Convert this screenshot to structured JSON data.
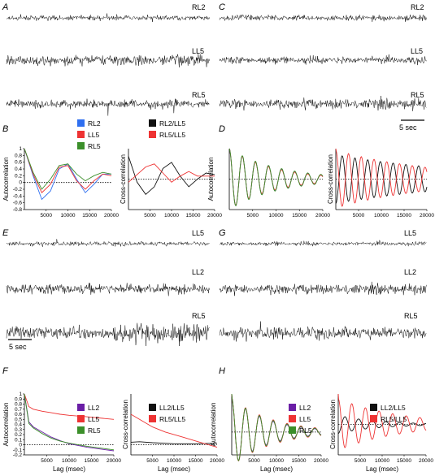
{
  "figure": {
    "panels": [
      {
        "id": "A",
        "label": "A",
        "type": "traces",
        "traces": [
          "RL2",
          "LL5",
          "RL5"
        ]
      },
      {
        "id": "C",
        "label": "C",
        "type": "traces",
        "traces": [
          "RL2",
          "LL5",
          "RL5"
        ],
        "scalebar": "5 sec"
      },
      {
        "id": "E",
        "label": "E",
        "type": "traces",
        "traces": [
          "LL5",
          "LL2",
          "RL5"
        ],
        "scalebar": "5 sec"
      },
      {
        "id": "G",
        "label": "G",
        "type": "traces",
        "traces": [
          "LL5",
          "LL2",
          "RL5"
        ]
      }
    ]
  },
  "colors": {
    "blue": "#2f6ff0",
    "red": "#ee3333",
    "green": "#3b8f2a",
    "purple": "#6a1ea6",
    "black": "#111111"
  },
  "chart_data": [
    {
      "panel": "B",
      "type": "line",
      "ylabel": "Autocorrelation",
      "xlabel": "",
      "xlim": [
        0,
        20000
      ],
      "ylim": [
        -0.8,
        1.0
      ],
      "xticks": [
        5000,
        10000,
        15000,
        20000
      ],
      "yticks": [
        -0.8,
        -0.6,
        -0.4,
        -0.2,
        0,
        0.2,
        0.4,
        0.6,
        0.8,
        1.0
      ],
      "legend": [
        "RL2",
        "LL5",
        "RL5"
      ],
      "series": [
        {
          "name": "RL2",
          "color": "blue",
          "x": [
            0,
            2000,
            4000,
            6000,
            8000,
            10000,
            12000,
            14000,
            16000,
            18000,
            20000
          ],
          "y": [
            1,
            0.2,
            -0.5,
            -0.25,
            0.4,
            0.55,
            0.1,
            -0.3,
            -0.05,
            0.25,
            0.25
          ]
        },
        {
          "name": "LL5",
          "color": "red",
          "x": [
            0,
            2000,
            4000,
            6000,
            8000,
            10000,
            12000,
            14000,
            16000,
            18000,
            20000
          ],
          "y": [
            1,
            0.25,
            -0.3,
            -0.05,
            0.45,
            0.5,
            0.05,
            -0.2,
            0.05,
            0.25,
            0.2
          ]
        },
        {
          "name": "RL5",
          "color": "green",
          "x": [
            0,
            2000,
            4000,
            6000,
            8000,
            10000,
            12000,
            14000,
            16000,
            18000,
            20000
          ],
          "y": [
            1,
            0.3,
            -0.2,
            0.1,
            0.5,
            0.55,
            0.25,
            0.05,
            0.2,
            0.3,
            0.25
          ]
        }
      ]
    },
    {
      "panel": "B2",
      "type": "line",
      "ylabel": "Cross-correlation",
      "xlabel": "",
      "xlim": [
        0,
        20000
      ],
      "ylim": [
        -1,
        1
      ],
      "xticks": [
        5000,
        10000,
        15000,
        20000
      ],
      "legend": [
        "RL2/LL5",
        "RL5/LL5"
      ],
      "series": [
        {
          "name": "RL2/LL5",
          "color": "black",
          "x": [
            0,
            2000,
            4000,
            6000,
            8000,
            10000,
            12000,
            14000,
            16000,
            18000,
            20000
          ],
          "y": [
            0.75,
            -0.1,
            -0.5,
            -0.25,
            0.35,
            0.55,
            0.1,
            -0.25,
            0.0,
            0.2,
            0.15
          ]
        },
        {
          "name": "RL5/LL5",
          "color": "red",
          "x": [
            0,
            2000,
            4000,
            6000,
            8000,
            10000,
            12000,
            14000,
            16000,
            18000,
            20000
          ],
          "y": [
            -0.1,
            0.15,
            0.4,
            0.5,
            0.2,
            -0.1,
            0.1,
            0.25,
            0.1,
            0.1,
            0.1
          ]
        }
      ]
    },
    {
      "panel": "D",
      "type": "line",
      "ylabel": "Autocorrelation",
      "xlabel": "",
      "xlim": [
        0,
        20000
      ],
      "ylim": [
        -1,
        1
      ],
      "xticks": [
        5000,
        10000,
        15000,
        20000
      ],
      "series": [
        {
          "name": "RL2",
          "color": "blue",
          "damped_cosine": {
            "amp": 1.0,
            "period": 2800,
            "decay": 10000
          }
        },
        {
          "name": "LL5",
          "color": "red",
          "damped_cosine": {
            "amp": 1.0,
            "period": 2800,
            "decay": 9500
          }
        },
        {
          "name": "RL5",
          "color": "green",
          "damped_cosine": {
            "amp": 1.0,
            "period": 2800,
            "decay": 10500
          }
        }
      ]
    },
    {
      "panel": "D2",
      "type": "line",
      "ylabel": "Cross-correlation",
      "xlabel": "",
      "xlim": [
        0,
        20000
      ],
      "ylim": [
        -1,
        1
      ],
      "xticks": [
        5000,
        10000,
        15000,
        20000
      ],
      "series": [
        {
          "name": "RL2/LL5",
          "color": "black",
          "damped_cosine": {
            "amp": 0.8,
            "period": 2800,
            "decay": 30000,
            "phase": 3.14
          }
        },
        {
          "name": "RL5/LL5",
          "color": "red",
          "damped_cosine": {
            "amp": 0.95,
            "period": 2800,
            "decay": 22000,
            "phase": 0
          }
        }
      ]
    },
    {
      "panel": "F",
      "type": "line",
      "ylabel": "Autocorrelation",
      "xlabel": "Lag (msec)",
      "xlim": [
        0,
        20000
      ],
      "ylim": [
        -0.2,
        1.0
      ],
      "xticks": [
        5000,
        10000,
        15000,
        20000
      ],
      "yticks": [
        -0.2,
        -0.1,
        0,
        0.1,
        0.2,
        0.3,
        0.4,
        0.5,
        0.6,
        0.7,
        0.8,
        0.9,
        1.0
      ],
      "legend": [
        "LL2",
        "LL5",
        "RL5"
      ],
      "series": [
        {
          "name": "LL2",
          "color": "purple",
          "x": [
            0,
            1000,
            2000,
            4000,
            6000,
            8000,
            10000,
            14000,
            20000
          ],
          "y": [
            1,
            0.45,
            0.35,
            0.25,
            0.15,
            0.08,
            0.02,
            -0.05,
            -0.12
          ]
        },
        {
          "name": "LL5",
          "color": "red",
          "x": [
            0,
            1000,
            2000,
            4000,
            6000,
            8000,
            10000,
            14000,
            20000
          ],
          "y": [
            1,
            0.75,
            0.7,
            0.66,
            0.63,
            0.6,
            0.58,
            0.55,
            0.5
          ]
        },
        {
          "name": "RL5",
          "color": "green",
          "x": [
            0,
            1000,
            2000,
            4000,
            6000,
            8000,
            10000,
            14000,
            20000
          ],
          "y": [
            1,
            0.42,
            0.33,
            0.22,
            0.13,
            0.07,
            0.03,
            -0.03,
            -0.1
          ]
        }
      ]
    },
    {
      "panel": "F2",
      "type": "line",
      "ylabel": "Cross-correlation",
      "xlabel": "Lag (msec)",
      "xlim": [
        0,
        20000
      ],
      "ylim": [
        -0.2,
        1.0
      ],
      "xticks": [
        5000,
        10000,
        15000,
        20000
      ],
      "legend": [
        "LL2/LL5",
        "RL5/LL5"
      ],
      "series": [
        {
          "name": "LL2/LL5",
          "color": "black",
          "x": [
            0,
            2000,
            5000,
            10000,
            15000,
            20000
          ],
          "y": [
            0.05,
            0.06,
            0.04,
            0.02,
            0.02,
            0.03
          ]
        },
        {
          "name": "RL5/LL5",
          "color": "red",
          "x": [
            0,
            2000,
            5000,
            8000,
            12000,
            16000,
            20000
          ],
          "y": [
            0.6,
            0.5,
            0.35,
            0.25,
            0.15,
            0.05,
            -0.05
          ]
        }
      ]
    },
    {
      "panel": "H",
      "type": "line",
      "ylabel": "Autocorrelation",
      "xlabel": "Lag (msec)",
      "xlim": [
        0,
        20000
      ],
      "ylim": [
        -0.6,
        1.0
      ],
      "xticks": [
        5000,
        10000,
        15000,
        20000
      ],
      "legend": [
        "LL2",
        "LL5",
        "RL5"
      ],
      "series": [
        {
          "name": "LL2",
          "color": "purple",
          "damped_cosine": {
            "amp": 0.9,
            "period": 3100,
            "decay": 8000
          }
        },
        {
          "name": "LL5",
          "color": "red",
          "damped_cosine": {
            "amp": 0.9,
            "period": 3100,
            "decay": 9000
          }
        },
        {
          "name": "RL5",
          "color": "green",
          "damped_cosine": {
            "amp": 0.9,
            "period": 3100,
            "decay": 8500
          }
        }
      ]
    },
    {
      "panel": "H2",
      "type": "line",
      "ylabel": "Cross-correlation",
      "xlabel": "Lag (msec)",
      "xlim": [
        0,
        20000
      ],
      "ylim": [
        -1,
        1
      ],
      "xticks": [
        5000,
        10000,
        15000,
        20000
      ],
      "legend": [
        "LL2/LL5",
        "RL5/LL5"
      ],
      "series": [
        {
          "name": "LL2/LL5",
          "color": "black",
          "damped_cosine": {
            "amp": 0.3,
            "period": 3100,
            "decay": 9000,
            "phase": 3.14
          }
        },
        {
          "name": "RL5/LL5",
          "color": "red",
          "damped_cosine": {
            "amp": 0.85,
            "period": 3100,
            "decay": 14000,
            "phase": 0
          }
        }
      ]
    }
  ]
}
